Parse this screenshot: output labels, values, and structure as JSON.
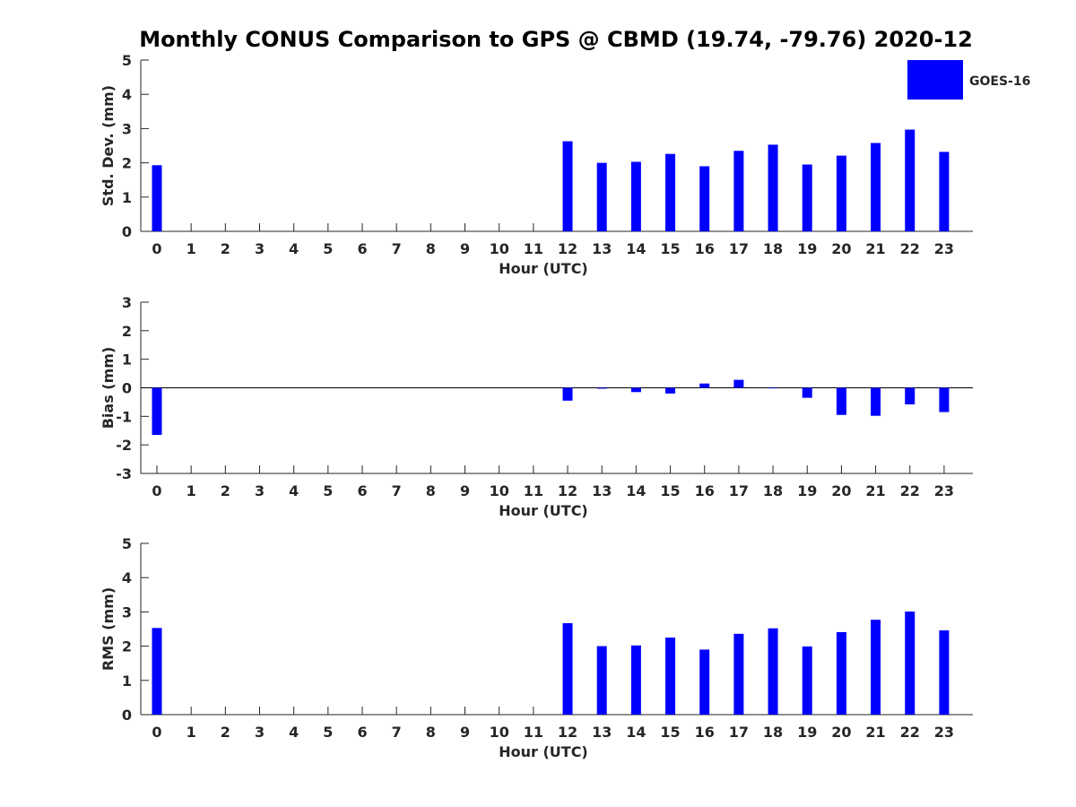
{
  "title": "Monthly CONUS Comparison to GPS @ CBMD (19.74, -79.76) 2020-12",
  "legend": {
    "label": "GOES-16",
    "color": "#0000ff",
    "placement": "top-right"
  },
  "chart_data": [
    {
      "type": "bar",
      "xlabel": "Hour (UTC)",
      "ylabel": "Std. Dev. (mm)",
      "ylim": [
        0,
        5
      ],
      "yticks": [
        0,
        1,
        2,
        3,
        4,
        5
      ],
      "categories": [
        "0",
        "1",
        "2",
        "3",
        "4",
        "5",
        "6",
        "7",
        "8",
        "9",
        "10",
        "11",
        "12",
        "13",
        "14",
        "15",
        "16",
        "17",
        "18",
        "19",
        "20",
        "21",
        "22",
        "23"
      ],
      "series": [
        {
          "name": "GOES-16",
          "values": [
            1.93,
            null,
            null,
            null,
            null,
            null,
            null,
            null,
            null,
            null,
            null,
            null,
            2.63,
            2.0,
            2.03,
            2.26,
            1.9,
            2.35,
            2.53,
            1.95,
            2.21,
            2.58,
            2.97,
            2.32
          ]
        }
      ]
    },
    {
      "type": "bar",
      "xlabel": "Hour (UTC)",
      "ylabel": "Bias (mm)",
      "ylim": [
        -3,
        3
      ],
      "yticks": [
        -3,
        -2,
        -1,
        0,
        1,
        2,
        3
      ],
      "categories": [
        "0",
        "1",
        "2",
        "3",
        "4",
        "5",
        "6",
        "7",
        "8",
        "9",
        "10",
        "11",
        "12",
        "13",
        "14",
        "15",
        "16",
        "17",
        "18",
        "19",
        "20",
        "21",
        "22",
        "23"
      ],
      "series": [
        {
          "name": "GOES-16",
          "values": [
            -1.65,
            null,
            null,
            null,
            null,
            null,
            null,
            null,
            null,
            null,
            null,
            null,
            -0.45,
            -0.03,
            -0.15,
            -0.2,
            0.15,
            0.28,
            -0.02,
            -0.35,
            -0.95,
            -0.98,
            -0.58,
            -0.85
          ]
        }
      ]
    },
    {
      "type": "bar",
      "xlabel": "Hour (UTC)",
      "ylabel": "RMS (mm)",
      "ylim": [
        0,
        5
      ],
      "yticks": [
        0,
        1,
        2,
        3,
        4,
        5
      ],
      "categories": [
        "0",
        "1",
        "2",
        "3",
        "4",
        "5",
        "6",
        "7",
        "8",
        "9",
        "10",
        "11",
        "12",
        "13",
        "14",
        "15",
        "16",
        "17",
        "18",
        "19",
        "20",
        "21",
        "22",
        "23"
      ],
      "series": [
        {
          "name": "GOES-16",
          "values": [
            2.53,
            null,
            null,
            null,
            null,
            null,
            null,
            null,
            null,
            null,
            null,
            null,
            2.67,
            2.0,
            2.02,
            2.25,
            1.9,
            2.36,
            2.52,
            1.99,
            2.41,
            2.77,
            3.01,
            2.46
          ]
        }
      ]
    }
  ]
}
